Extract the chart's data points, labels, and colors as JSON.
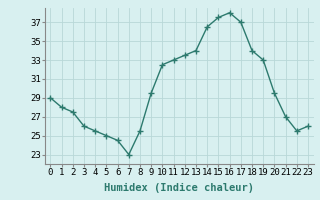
{
  "x": [
    0,
    1,
    2,
    3,
    4,
    5,
    6,
    7,
    8,
    9,
    10,
    11,
    12,
    13,
    14,
    15,
    16,
    17,
    18,
    19,
    20,
    21,
    22,
    23
  ],
  "y": [
    29,
    28,
    27.5,
    26,
    25.5,
    25,
    24.5,
    23,
    25.5,
    29.5,
    32.5,
    33,
    33.5,
    34,
    36.5,
    37.5,
    38,
    37,
    34,
    33,
    29.5,
    27,
    25.5,
    26
  ],
  "line_color": "#2d7a6e",
  "marker": "+",
  "bg_color": "#d8f0f0",
  "grid_color": "#b8d8d8",
  "xlabel": "Humidex (Indice chaleur)",
  "ylabel_ticks": [
    23,
    25,
    27,
    29,
    31,
    33,
    35,
    37
  ],
  "xlim": [
    -0.5,
    23.5
  ],
  "ylim": [
    22.0,
    38.5
  ],
  "xlabel_fontsize": 7.5,
  "tick_fontsize": 6.5,
  "title": ""
}
